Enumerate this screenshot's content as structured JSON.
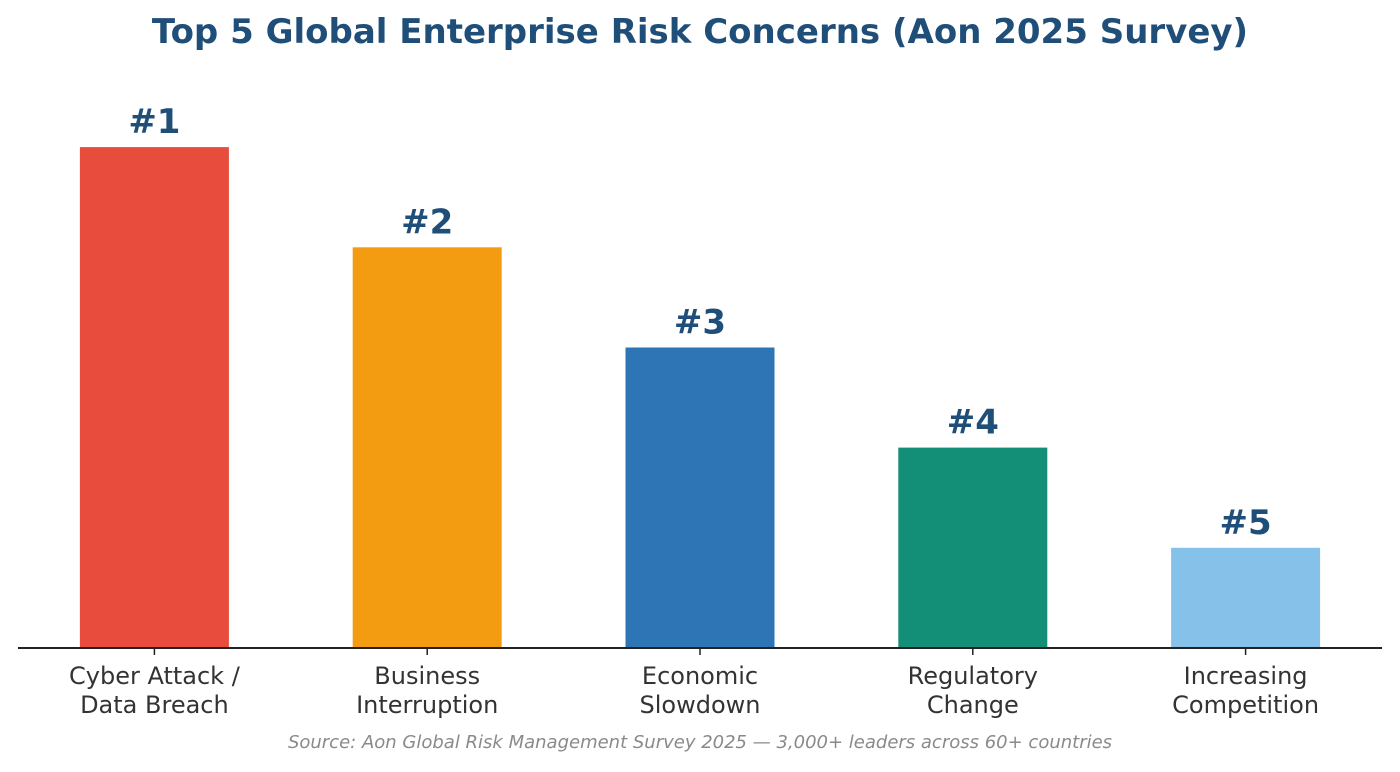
{
  "chart_data": {
    "type": "bar",
    "title": "Top 5 Global Enterprise Risk Concerns (Aon 2025 Survey)",
    "categories": [
      [
        "Cyber Attack /",
        "Data Breach"
      ],
      [
        "Business",
        "Interruption"
      ],
      [
        "Economic",
        "Slowdown"
      ],
      [
        "Regulatory",
        "Change"
      ],
      [
        "Increasing",
        "Competition"
      ]
    ],
    "rank_labels": [
      "#1",
      "#2",
      "#3",
      "#4",
      "#5"
    ],
    "values": [
      5,
      4,
      3,
      2,
      1
    ],
    "colors": [
      "#e74c3c",
      "#f39c12",
      "#2e75b6",
      "#138f78",
      "#85c1e9"
    ],
    "ylim": [
      0,
      5.5
    ],
    "xlabel": "",
    "ylabel": "",
    "grid": false,
    "source": "Source: Aon Global Risk Management Survey 2025 — 3,000+ leaders across 60+ countries"
  }
}
